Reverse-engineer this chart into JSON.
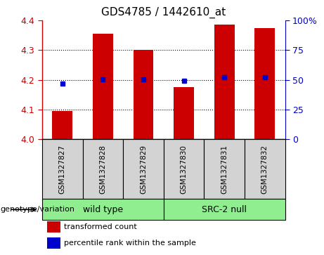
{
  "title": "GDS4785 / 1442610_at",
  "samples": [
    "GSM1327827",
    "GSM1327828",
    "GSM1327829",
    "GSM1327830",
    "GSM1327831",
    "GSM1327832"
  ],
  "bar_values": [
    4.095,
    4.355,
    4.3,
    4.175,
    4.385,
    4.375
  ],
  "dot_values": [
    4.188,
    4.202,
    4.202,
    4.196,
    4.208,
    4.208
  ],
  "ylim": [
    4.0,
    4.4
  ],
  "yticks_left": [
    4.0,
    4.1,
    4.2,
    4.3,
    4.4
  ],
  "yticks_right": [
    0,
    25,
    50,
    75,
    100
  ],
  "ytick_labels_right": [
    "0",
    "25",
    "50",
    "75",
    "100%"
  ],
  "grid_values": [
    4.1,
    4.2,
    4.3
  ],
  "bar_color": "#cc0000",
  "dot_color": "#0000cc",
  "group1_label": "wild type",
  "group1_samples": [
    0,
    1,
    2
  ],
  "group2_label": "SRC-2 null",
  "group2_samples": [
    3,
    4,
    5
  ],
  "group_color": "#90ee90",
  "genotype_label": "genotype/variation",
  "legend_bar_label": "transformed count",
  "legend_dot_label": "percentile rank within the sample",
  "bar_width": 0.5,
  "sample_box_color": "#d3d3d3",
  "left_label_color": "#cc0000",
  "right_label_color": "#0000cc",
  "bg_color": "#ffffff"
}
